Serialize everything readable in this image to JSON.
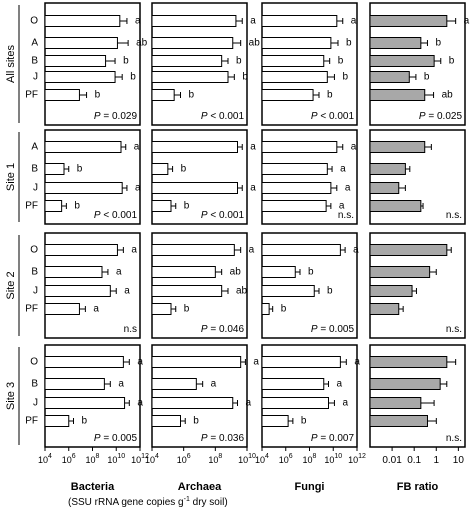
{
  "chart_data": {
    "type": "bar",
    "orientation": "horizontal",
    "columns": [
      {
        "key": "bacteria",
        "title": "Bacteria",
        "scale": "log",
        "xlim": [
          4,
          12
        ],
        "ticks": [
          {
            "e": "4"
          },
          {
            "e": "6"
          },
          {
            "e": "8"
          },
          {
            "e": "10"
          },
          {
            "e": "12"
          }
        ]
      },
      {
        "key": "archaea",
        "title": "Archaea",
        "scale": "log",
        "xlim": [
          4,
          10
        ],
        "ticks": [
          {
            "e": "4"
          },
          {
            "e": "6"
          },
          {
            "e": "8"
          },
          {
            "e": "10"
          }
        ]
      },
      {
        "key": "fungi",
        "title": "Fungi",
        "scale": "log",
        "xlim": [
          4,
          12
        ],
        "ticks": [
          {
            "e": "4"
          },
          {
            "e": "6"
          },
          {
            "e": "8"
          },
          {
            "e": "10"
          },
          {
            "e": "12"
          }
        ]
      },
      {
        "key": "fb",
        "title": "FB ratio",
        "scale": "log",
        "xlim": [
          -3,
          1.3
        ],
        "tick_values": [
          0.01,
          0.1,
          1,
          10
        ],
        "tick_labels": [
          "0.01",
          "0.1",
          "1",
          "10"
        ]
      }
    ],
    "x_axis_caption": {
      "pre": "(SSU rRNA gene copies g",
      "sup": "-1",
      "post": " dry soil)"
    },
    "tick_base": "10",
    "panels": [
      {
        "row": "All sites",
        "categories": [
          "O",
          "A",
          "B",
          "J",
          "PF"
        ],
        "bacteria": {
          "values": [
            10.3,
            10.1,
            9.1,
            9.9,
            6.9
          ],
          "errors": [
            0.6,
            0.9,
            0.8,
            0.6,
            0.6
          ],
          "letters": [
            "a",
            "ab",
            "b",
            "b",
            "b"
          ],
          "p": "0.029"
        },
        "archaea": {
          "values": [
            9.3,
            9.1,
            8.4,
            8.8,
            5.4
          ],
          "errors": [
            0.4,
            0.5,
            0.4,
            0.4,
            0.4
          ],
          "letters": [
            "a",
            "ab",
            "b",
            "b",
            "b"
          ],
          "p": "< 0.001"
        },
        "fungi": {
          "values": [
            10.3,
            9.8,
            9.2,
            9.5,
            8.3
          ],
          "errors": [
            0.5,
            0.6,
            0.5,
            0.6,
            0.5
          ],
          "letters": [
            "a",
            "b",
            "b",
            "b",
            "b"
          ],
          "p": "< 0.001"
        },
        "fb": {
          "values": [
            3.0,
            0.2,
            0.8,
            0.06,
            0.3
          ],
          "errors_log": [
            0.4,
            0.3,
            0.3,
            0.3,
            0.4
          ],
          "letters": [
            "a",
            "b",
            "b",
            "b",
            "ab"
          ],
          "p": "0.025"
        }
      },
      {
        "row": "Site 1",
        "categories": [
          "A",
          "B",
          "J",
          "PF"
        ],
        "bacteria": {
          "values": [
            10.4,
            5.6,
            10.5,
            5.4
          ],
          "errors": [
            0.4,
            0.4,
            0.4,
            0.4
          ],
          "letters": [
            "a",
            "b",
            "a",
            "b"
          ],
          "p": "< 0.001"
        },
        "archaea": {
          "values": [
            9.4,
            5.0,
            9.4,
            5.2
          ],
          "errors": [
            0.3,
            0.3,
            0.3,
            0.3
          ],
          "letters": [
            "a",
            "b",
            "a",
            "b"
          ],
          "p": "< 0.001"
        },
        "fungi": {
          "values": [
            10.3,
            9.5,
            9.8,
            9.4
          ],
          "errors": [
            0.5,
            0.4,
            0.5,
            0.4
          ],
          "letters": [
            "a",
            "a",
            "a",
            "a"
          ],
          "p": "n.s."
        },
        "fb": {
          "values": [
            0.3,
            0.04,
            0.02,
            0.2
          ],
          "errors_log": [
            0.3,
            0.2,
            0.3,
            0.1
          ],
          "letters": [],
          "p": "n.s."
        }
      },
      {
        "row": "Site 2",
        "categories": [
          "O",
          "B",
          "J",
          "PF"
        ],
        "bacteria": {
          "values": [
            10.1,
            8.8,
            9.5,
            6.9
          ],
          "errors": [
            0.5,
            0.5,
            0.5,
            0.5
          ],
          "letters": [
            "a",
            "a",
            "a",
            "a"
          ],
          "p": "n.s"
        },
        "archaea": {
          "values": [
            9.2,
            8.0,
            8.4,
            5.2
          ],
          "errors": [
            0.4,
            0.4,
            0.4,
            0.3
          ],
          "letters": [
            "a",
            "ab",
            "ab",
            "b"
          ],
          "p": "0.046"
        },
        "fungi": {
          "values": [
            10.6,
            6.8,
            8.4,
            4.6
          ],
          "errors": [
            0.4,
            0.4,
            0.4,
            0.3
          ],
          "letters": [
            "a",
            "b",
            "b",
            "b"
          ],
          "p": "0.005"
        },
        "fb": {
          "values": [
            3.0,
            0.5,
            0.08,
            0.02
          ],
          "errors_log": [
            0.2,
            0.3,
            0.2,
            0.2
          ],
          "letters": [],
          "p": "n.s."
        }
      },
      {
        "row": "Site 3",
        "categories": [
          "O",
          "B",
          "J",
          "PF"
        ],
        "bacteria": {
          "values": [
            10.6,
            9.0,
            10.7,
            6.0
          ],
          "errors": [
            0.5,
            0.5,
            0.4,
            0.4
          ],
          "letters": [
            "a",
            "a",
            "a",
            "b"
          ],
          "p": "0.005"
        },
        "archaea": {
          "values": [
            9.6,
            6.8,
            9.1,
            5.8
          ],
          "errors": [
            0.3,
            0.4,
            0.3,
            0.3
          ],
          "letters": [
            "a",
            "a",
            "a",
            "b"
          ],
          "p": "0.036"
        },
        "fungi": {
          "values": [
            10.6,
            9.2,
            9.6,
            6.2
          ],
          "errors": [
            0.5,
            0.4,
            0.5,
            0.4
          ],
          "letters": [
            "a",
            "a",
            "a",
            "b"
          ],
          "p": "0.007"
        },
        "fb": {
          "values": [
            3.0,
            1.5,
            0.2,
            0.4
          ],
          "errors_log": [
            0.4,
            0.3,
            0.6,
            0.4
          ],
          "letters": [],
          "p": "n.s."
        }
      }
    ],
    "colors": {
      "bar_fill": "#ffffff",
      "fb_fill": "#a8a8a8",
      "stroke": "#000000"
    }
  }
}
